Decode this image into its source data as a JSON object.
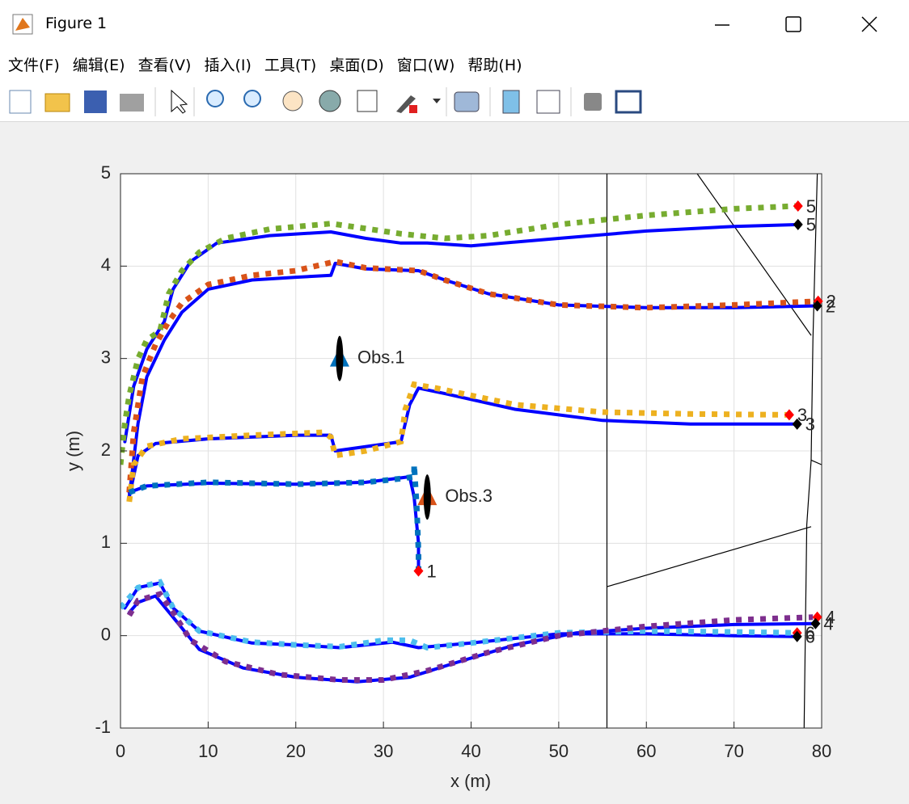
{
  "window": {
    "title": "Figure 1",
    "menu": [
      "文件(F)",
      "编辑(E)",
      "查看(V)",
      "插入(I)",
      "工具(T)",
      "桌面(D)",
      "窗口(W)",
      "帮助(H)"
    ]
  },
  "chart_data": {
    "type": "line",
    "xlabel": "x (m)",
    "ylabel": "y (m)",
    "xlim": [
      0,
      80
    ],
    "ylim": [
      -1,
      5
    ],
    "xticks": [
      0,
      10,
      20,
      30,
      40,
      50,
      60,
      70,
      80
    ],
    "yticks": [
      -1,
      0,
      1,
      2,
      3,
      4,
      5
    ],
    "grid": true,
    "series": [
      {
        "color": "#000000",
        "style": "thin",
        "x": [
          55.5,
          55.5
        ],
        "values": [
          5,
          -1
        ]
      },
      {
        "color": "#000000",
        "style": "thin",
        "x": [
          55.5,
          78.8
        ],
        "values": [
          0.53,
          1.18
        ]
      },
      {
        "color": "#000000",
        "style": "thin",
        "x": [
          65.8,
          78.8
        ],
        "values": [
          5,
          3.25
        ]
      },
      {
        "color": "#000000",
        "style": "thin",
        "x": [
          79.5,
          79.0,
          78.8,
          78.3,
          78.0
        ],
        "values": [
          5,
          3.2,
          1.9,
          1.2,
          -1
        ]
      },
      {
        "color": "#000000",
        "style": "thin",
        "x": [
          78.8,
          80
        ],
        "values": [
          1.9,
          1.85
        ]
      },
      {
        "color": "#0000ff",
        "style": "solid",
        "x": [
          0.5,
          1.5,
          3,
          5,
          6,
          8,
          11,
          17,
          24,
          28,
          32,
          35,
          40,
          50,
          60,
          70,
          77.5
        ],
        "values": [
          2.1,
          2.7,
          3.1,
          3.4,
          3.75,
          4.05,
          4.25,
          4.33,
          4.37,
          4.3,
          4.25,
          4.25,
          4.22,
          4.3,
          4.38,
          4.43,
          4.45
        ]
      },
      {
        "color": "#0000ff",
        "style": "solid",
        "x": [
          1,
          2,
          3,
          5,
          7,
          10,
          15,
          20,
          24,
          24.5,
          28,
          34,
          37,
          42,
          50,
          60,
          70,
          79.5
        ],
        "values": [
          1.5,
          2.3,
          2.8,
          3.2,
          3.5,
          3.75,
          3.85,
          3.88,
          3.9,
          4.03,
          3.97,
          3.95,
          3.85,
          3.7,
          3.58,
          3.55,
          3.55,
          3.57
        ]
      },
      {
        "color": "#0000ff",
        "style": "solid",
        "x": [
          1,
          2,
          4,
          10,
          20,
          24,
          24.5,
          32,
          33,
          34,
          37,
          45,
          55,
          65,
          77
        ],
        "values": [
          1.5,
          1.95,
          2.08,
          2.13,
          2.17,
          2.17,
          2.0,
          2.1,
          2.5,
          2.68,
          2.62,
          2.45,
          2.33,
          2.29,
          2.29
        ]
      },
      {
        "color": "#0000ff",
        "style": "solid",
        "x": [
          1,
          3,
          10,
          20,
          28,
          33,
          33.5,
          34,
          34
        ],
        "values": [
          1.55,
          1.62,
          1.65,
          1.64,
          1.66,
          1.72,
          1.5,
          1.0,
          0.72
        ]
      },
      {
        "color": "#0000ff",
        "style": "solid",
        "x": [
          0.5,
          2,
          4.5,
          6,
          9,
          15,
          20,
          25,
          31,
          34,
          40,
          50,
          60,
          70,
          77
        ],
        "values": [
          0.3,
          0.52,
          0.57,
          0.3,
          0.05,
          -0.08,
          -0.1,
          -0.13,
          -0.07,
          -0.13,
          -0.08,
          0.02,
          0.02,
          0.0,
          -0.01
        ]
      },
      {
        "color": "#0000ff",
        "style": "solid",
        "x": [
          1,
          2,
          4,
          6,
          9,
          14,
          20,
          27,
          33,
          38,
          45,
          52,
          60,
          70,
          79
        ],
        "values": [
          0.25,
          0.36,
          0.43,
          0.2,
          -0.15,
          -0.35,
          -0.45,
          -0.5,
          -0.45,
          -0.3,
          -0.1,
          0.03,
          0.08,
          0.12,
          0.13
        ]
      },
      {
        "color": "#77ac30",
        "style": "dotted",
        "x": [
          0,
          0.5,
          1,
          2,
          3,
          4.5,
          5.5,
          7,
          9,
          12,
          17,
          24,
          27,
          32,
          37,
          42,
          50,
          60,
          70,
          77
        ],
        "values": [
          1.85,
          2.3,
          2.6,
          3.0,
          3.2,
          3.3,
          3.7,
          3.95,
          4.15,
          4.3,
          4.4,
          4.46,
          4.42,
          4.35,
          4.3,
          4.33,
          4.45,
          4.55,
          4.62,
          4.65
        ]
      },
      {
        "color": "#d95319",
        "style": "dotted",
        "x": [
          1,
          1.5,
          2.5,
          4,
          5.5,
          7,
          10,
          15,
          20,
          24.5,
          28,
          34,
          37,
          42,
          50,
          60,
          70,
          79.5
        ],
        "values": [
          1.55,
          2.2,
          2.8,
          3.15,
          3.4,
          3.6,
          3.8,
          3.9,
          3.95,
          4.05,
          3.98,
          3.95,
          3.85,
          3.7,
          3.58,
          3.55,
          3.58,
          3.62
        ]
      },
      {
        "color": "#edb120",
        "style": "dotted",
        "x": [
          1,
          1.5,
          3,
          7,
          15,
          23,
          24,
          24.5,
          28,
          32,
          32.5,
          33.5,
          36,
          45,
          55,
          65,
          76
        ],
        "values": [
          1.45,
          1.85,
          2.05,
          2.13,
          2.17,
          2.2,
          2.15,
          1.95,
          2.0,
          2.1,
          2.45,
          2.72,
          2.68,
          2.5,
          2.42,
          2.4,
          2.39
        ]
      },
      {
        "color": "#0072bd",
        "style": "dotted",
        "x": [
          1,
          3,
          10,
          20,
          28,
          32,
          33.5,
          33.5,
          33.8,
          34,
          34
        ],
        "values": [
          1.55,
          1.62,
          1.66,
          1.64,
          1.66,
          1.7,
          1.72,
          1.85,
          1.4,
          0.9,
          0.7
        ]
      },
      {
        "color": "#4dbeee",
        "style": "dotted",
        "x": [
          0,
          2,
          4.5,
          6,
          9,
          15,
          20,
          25,
          30,
          33,
          35,
          40,
          50,
          60,
          70,
          77
        ],
        "values": [
          0.3,
          0.52,
          0.58,
          0.3,
          0.05,
          -0.07,
          -0.1,
          -0.12,
          -0.05,
          -0.05,
          -0.13,
          -0.08,
          0.03,
          0.05,
          0.04,
          0.03
        ]
      },
      {
        "color": "#7e2f8e",
        "style": "dotted",
        "x": [
          1,
          2,
          4.5,
          6,
          8,
          12,
          18,
          25,
          30,
          35,
          42,
          50,
          60,
          70,
          79
        ],
        "values": [
          0.22,
          0.38,
          0.45,
          0.25,
          -0.05,
          -0.28,
          -0.42,
          -0.48,
          -0.48,
          -0.38,
          -0.18,
          0.0,
          0.1,
          0.17,
          0.2
        ]
      }
    ],
    "points": [
      {
        "x": 77.3,
        "y": 4.65,
        "color": "#ff0000",
        "label": "5"
      },
      {
        "x": 77.3,
        "y": 4.45,
        "color": "#000000",
        "label": "5"
      },
      {
        "x": 79.6,
        "y": 3.62,
        "color": "#ff0000",
        "label": "2"
      },
      {
        "x": 79.5,
        "y": 3.57,
        "color": "#000000",
        "label": "2"
      },
      {
        "x": 76.3,
        "y": 2.39,
        "color": "#ff0000",
        "label": "3"
      },
      {
        "x": 77.2,
        "y": 2.29,
        "color": "#000000",
        "label": "3"
      },
      {
        "x": 34,
        "y": 0.7,
        "color": "#ff0000",
        "label": "1"
      },
      {
        "x": 79.5,
        "y": 0.2,
        "color": "#ff0000",
        "label": "4"
      },
      {
        "x": 79.3,
        "y": 0.13,
        "color": "#000000",
        "label": "4"
      },
      {
        "x": 77.2,
        "y": 0.03,
        "color": "#ff0000",
        "label": "6"
      },
      {
        "x": 77.2,
        "y": -0.01,
        "color": "#000000",
        "label": "6"
      }
    ],
    "obstacles": [
      {
        "x": 25,
        "y": 3.0,
        "color": "#0072bd",
        "label": "Obs.1"
      },
      {
        "x": 35,
        "y": 1.5,
        "color": "#d95319",
        "label": "Obs.3"
      }
    ]
  }
}
